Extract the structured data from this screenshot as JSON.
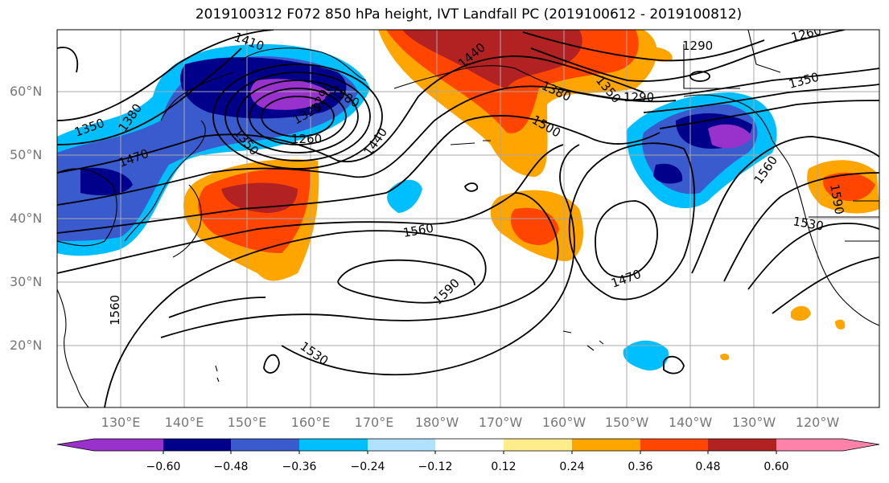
{
  "title": "2019100312 F072 850 hPa height, IVT Landfall PC (2019100612 - 2019100812)",
  "lat_labels": [
    "60°N",
    "50°N",
    "40°N",
    "30°N",
    "20°N"
  ],
  "lon_labels": [
    "130°E",
    "140°E",
    "150°E",
    "160°E",
    "170°E",
    "180°W",
    "170°W",
    "160°W",
    "150°W",
    "140°W",
    "130°W",
    "120°W"
  ],
  "contour_labels": [
    "1410",
    "1380",
    "1350",
    "1380",
    "1470",
    "1350",
    "1320",
    "1290",
    "1260",
    "1440",
    "1440",
    "1380",
    "1350",
    "1500",
    "1290",
    "1260",
    "1290",
    "1350",
    "1560",
    "1560",
    "1590",
    "1470",
    "1530",
    "1530",
    "1590",
    "1560"
  ],
  "colorbar": {
    "ticks": [
      "−0.60",
      "−0.48",
      "−0.36",
      "−0.24",
      "−0.12",
      "0.12",
      "0.24",
      "0.36",
      "0.48",
      "0.60"
    ],
    "colors": [
      "#9932cc",
      "#00008b",
      "#3a5bcd",
      "#00bfff",
      "#b0e2ff",
      "#ffffff",
      "#ffec8b",
      "#ffa500",
      "#ff4500",
      "#b22222",
      "#ff82ab"
    ]
  }
}
